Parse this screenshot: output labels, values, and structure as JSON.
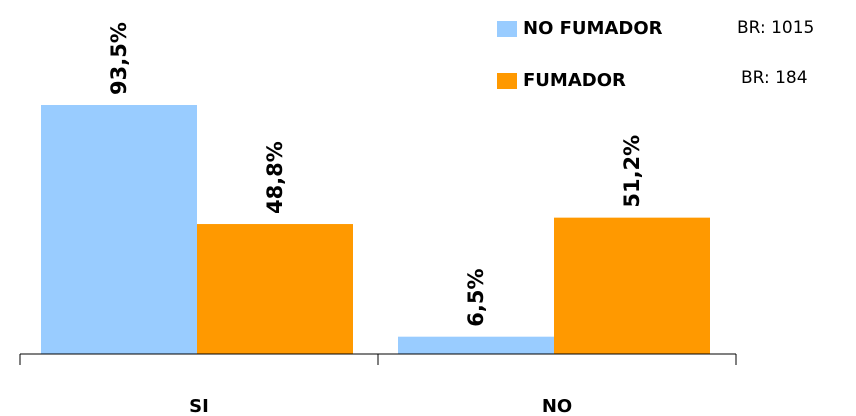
{
  "chart_data": {
    "type": "bar",
    "categories": [
      "SI",
      "NO"
    ],
    "series": [
      {
        "name": "NO FUMADOR",
        "values": [
          93.5,
          6.5
        ],
        "labels": [
          "93,5%",
          "6,5%"
        ],
        "color": "#99CCFF",
        "note": "BR: 1015"
      },
      {
        "name": "FUMADOR",
        "values": [
          48.8,
          51.2
        ],
        "labels": [
          "48,8%",
          "51,2%"
        ],
        "color": "#FF9900",
        "note": "BR: 184"
      }
    ],
    "ylim": [
      0,
      100
    ],
    "grid": false,
    "legend": "top-right"
  }
}
